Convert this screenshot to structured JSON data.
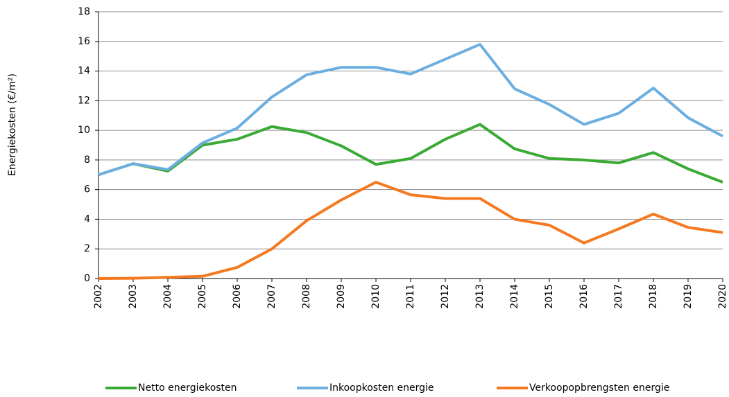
{
  "chart_data": {
    "type": "line",
    "y_label": "Energiekosten (€/m²)",
    "categories": [
      "2002",
      "2003",
      "2004",
      "2005",
      "2006",
      "2007",
      "2008",
      "2009",
      "2010",
      "2011",
      "2012",
      "2013",
      "2014",
      "2015",
      "2016",
      "2017",
      "2018",
      "2019",
      "2020"
    ],
    "series": [
      {
        "name": "Netto energiekosten",
        "color": "#3aaa35",
        "values": [
          7.0,
          7.75,
          7.25,
          9.0,
          9.4,
          10.25,
          9.85,
          8.95,
          7.7,
          8.1,
          9.4,
          10.4,
          8.75,
          8.1,
          8.0,
          7.8,
          8.5,
          7.4,
          6.5
        ]
      },
      {
        "name": "Inkoopkosten energie",
        "color": "#6caee0",
        "values": [
          7.0,
          7.75,
          7.35,
          9.15,
          10.15,
          12.25,
          13.75,
          14.25,
          14.25,
          13.8,
          14.8,
          15.8,
          12.8,
          11.75,
          10.4,
          11.15,
          12.85,
          10.85,
          9.6
        ]
      },
      {
        "name": "Verkoopopbrengsten energie",
        "color": "#f47920",
        "values": [
          0,
          0.02,
          0.08,
          0.15,
          0.75,
          2.0,
          3.9,
          5.3,
          6.5,
          5.65,
          5.4,
          5.4,
          4.0,
          3.6,
          2.4,
          3.35,
          4.35,
          3.45,
          3.1
        ]
      }
    ],
    "ylim": [
      0,
      18
    ],
    "yticks": [
      0,
      2,
      4,
      6,
      8,
      10,
      12,
      14,
      16,
      18
    ],
    "grid": true
  }
}
